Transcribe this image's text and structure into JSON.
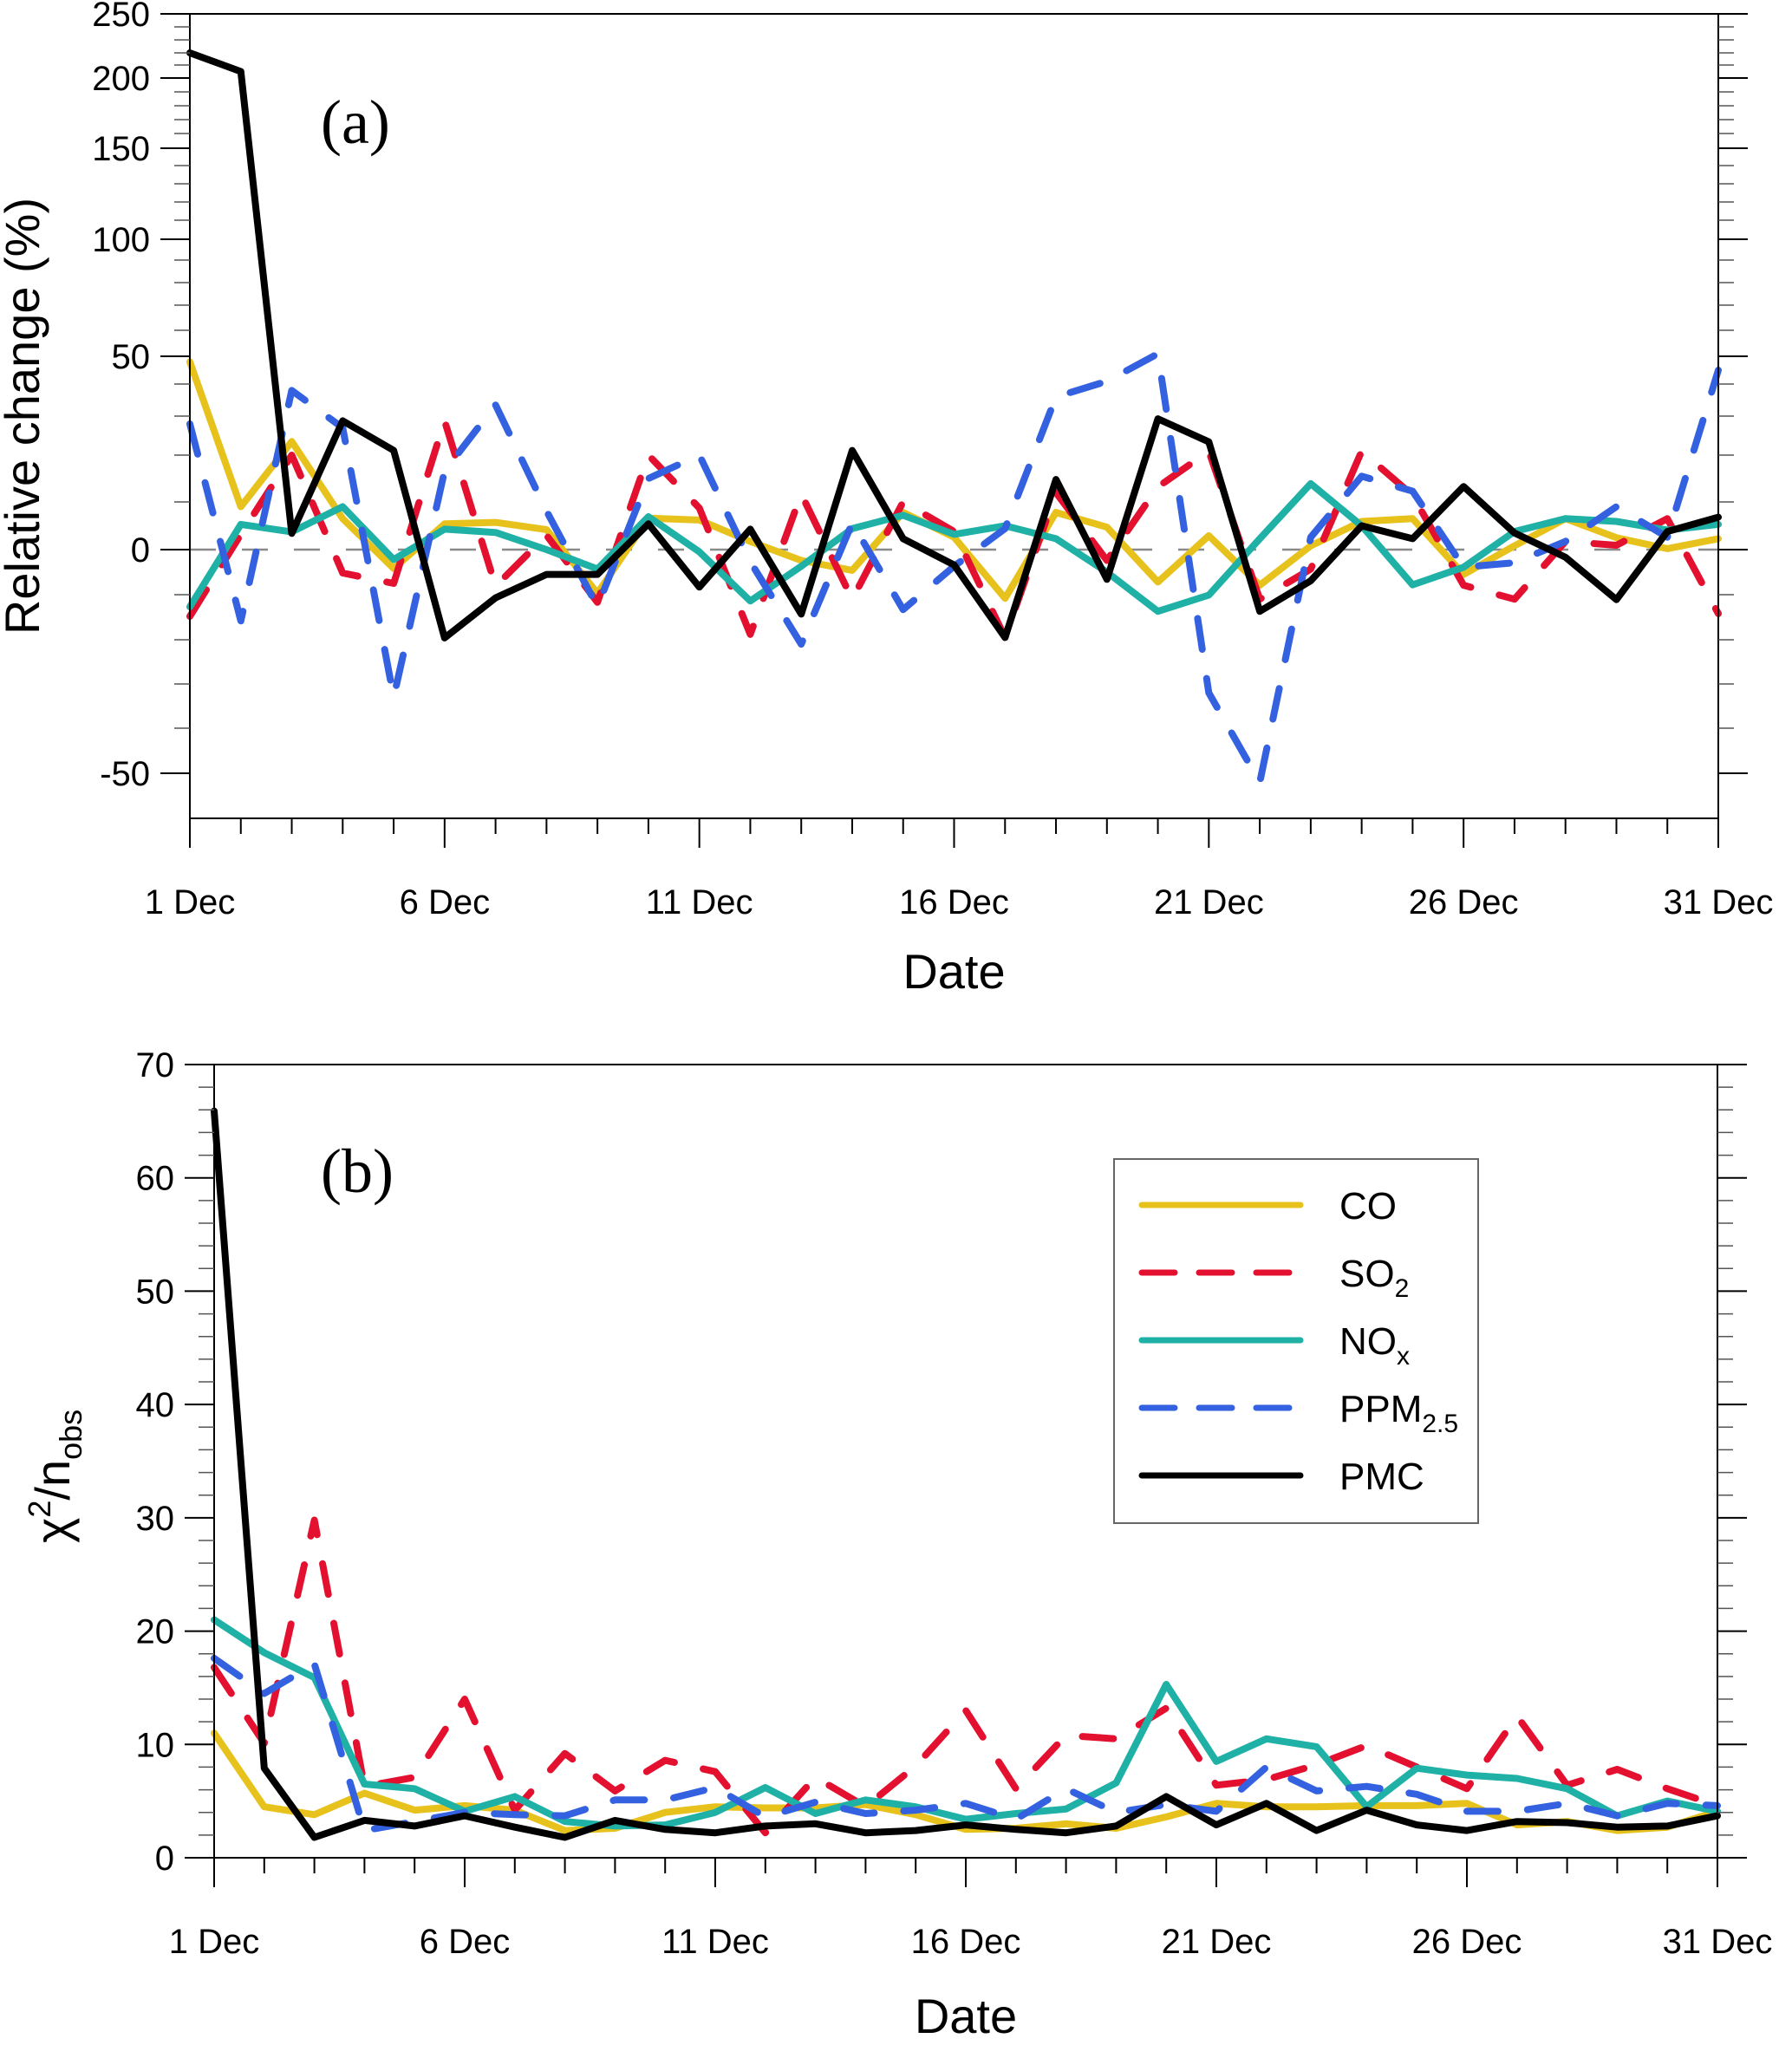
{
  "figure": {
    "legend": {
      "entries": [
        {
          "key": "CO",
          "label": "CO",
          "sub": ""
        },
        {
          "key": "SO2",
          "label": "SO",
          "sub": "2"
        },
        {
          "key": "NOx",
          "label": "NO",
          "sub": "x"
        },
        {
          "key": "PPM25",
          "label": "PPM",
          "sub": "2.5"
        },
        {
          "key": "PMC",
          "label": "PMC",
          "sub": ""
        }
      ],
      "placement": "upper-right of panel (b)"
    },
    "series_style": {
      "CO": {
        "color": "#e8c21c",
        "dash": "solid"
      },
      "SO2": {
        "color": "#e3102f",
        "dash": "dashed"
      },
      "NOx": {
        "color": "#1fb0a6",
        "dash": "solid"
      },
      "PPM25": {
        "color": "#3361e0",
        "dash": "dashed"
      },
      "PMC": {
        "color": "#000000",
        "dash": "solid"
      }
    }
  },
  "chart_data": [
    {
      "type": "line",
      "panel_label": "(a)",
      "title": "",
      "xlabel": "Date",
      "ylabel": "Relative change (%)",
      "x": [
        1,
        2,
        3,
        4,
        5,
        6,
        7,
        8,
        9,
        10,
        11,
        12,
        13,
        14,
        15,
        16,
        17,
        18,
        19,
        20,
        21,
        22,
        23,
        24,
        25,
        26,
        27,
        28,
        29,
        30,
        31
      ],
      "x_ticks": [
        1,
        6,
        11,
        16,
        21,
        26,
        31
      ],
      "x_tick_labels": [
        "1 Dec",
        "6 Dec",
        "11 Dec",
        "16 Dec",
        "21 Dec",
        "26 Dec",
        "31 Dec"
      ],
      "y_ticks": [
        -50,
        0,
        50,
        100,
        150,
        200,
        250
      ],
      "y_tick_labels": [
        "-50",
        "0",
        "50",
        "100",
        "150",
        "200",
        "250"
      ],
      "ylim": [
        -60,
        250
      ],
      "y_scale": "nonlinear (compressed above 0)",
      "reference_line": 0,
      "grid": false,
      "series": [
        {
          "name": "CO",
          "values": [
            48,
            9,
            23.5,
            6.5,
            -4.2,
            5.4,
            5.7,
            4.2,
            -9.7,
            6.6,
            6.2,
            1.7,
            -2.4,
            -4.6,
            7.8,
            2.6,
            -10.8,
            7.8,
            4.7,
            -7.2,
            2.9,
            -7.9,
            0.8,
            5.9,
            6.5,
            -5.5,
            0.8,
            6.5,
            2.5,
            0.2,
            2.3
          ]
        },
        {
          "name": "SO2",
          "values": [
            -14.8,
            3.2,
            20,
            -5.2,
            -7.5,
            28.8,
            -8.1,
            3.0,
            -11.7,
            20,
            8.7,
            -18.8,
            11.7,
            -11,
            10,
            3.8,
            -19.5,
            12,
            -2.4,
            13.2,
            21,
            -11,
            -4.3,
            21,
            11.4,
            -7.9,
            -11,
            1.7,
            0.9,
            6.5,
            -14.2
          ]
        },
        {
          "name": "NOx",
          "values": [
            -12.7,
            5.3,
            3.7,
            9,
            -2.2,
            4.3,
            3.6,
            0,
            -4.3,
            6.9,
            -0.5,
            -11.4,
            -3.7,
            4.4,
            7.2,
            3.2,
            5.0,
            2.3,
            -5,
            -13.7,
            -10.1,
            2.3,
            13.9,
            5,
            -7.8,
            -3.9,
            3.8,
            6.5,
            5.9,
            4.1,
            5.3
          ]
        },
        {
          "name": "PPM2.5",
          "values": [
            28,
            -15.8,
            38,
            27,
            -33,
            16.6,
            33.5,
            8.1,
            -12.6,
            15,
            20,
            -2.7,
            -21,
            5.6,
            -13.3,
            -3.7,
            4.4,
            36,
            41,
            51,
            -32,
            -52,
            2.6,
            15.5,
            12.3,
            -3.9,
            -2.9,
            1.7,
            9,
            2.6,
            45
          ]
        },
        {
          "name": "PMC",
          "values": [
            220,
            205,
            3.4,
            28.8,
            21.2,
            -19.6,
            -10.7,
            -5.5,
            -5.5,
            5.4,
            -8.3,
            4.3,
            -14.3,
            21.2,
            2.3,
            -3.4,
            -19.5,
            14.8,
            -6.6,
            29.3,
            23.4,
            -13.7,
            -6.9,
            5,
            2.3,
            13.3,
            3.5,
            -1.7,
            -11.1,
            3.8,
            6.8
          ]
        }
      ]
    },
    {
      "type": "line",
      "panel_label": "(b)",
      "title": "",
      "xlabel": "Date",
      "ylabel": "χ2/nobs",
      "ylabel_parts": {
        "main": "χ",
        "sup": "2",
        "mid": "/n",
        "sub": "obs"
      },
      "x": [
        1,
        2,
        3,
        4,
        5,
        6,
        7,
        8,
        9,
        10,
        11,
        12,
        13,
        14,
        15,
        16,
        17,
        18,
        19,
        20,
        21,
        22,
        23,
        24,
        25,
        26,
        27,
        28,
        29,
        30,
        31
      ],
      "x_ticks": [
        1,
        6,
        11,
        16,
        21,
        26,
        31
      ],
      "x_tick_labels": [
        "1 Dec",
        "6 Dec",
        "11 Dec",
        "16 Dec",
        "21 Dec",
        "26 Dec",
        "31 Dec"
      ],
      "y_ticks": [
        0,
        10,
        20,
        30,
        40,
        50,
        60,
        70
      ],
      "y_tick_labels": [
        "0",
        "10",
        "20",
        "30",
        "40",
        "50",
        "60",
        "70"
      ],
      "ylim": [
        0,
        70
      ],
      "grid": false,
      "legend_placement": "top-right",
      "series": [
        {
          "name": "CO",
          "values": [
            11.0,
            4.5,
            3.8,
            5.7,
            4.2,
            4.6,
            4.2,
            2.4,
            2.6,
            4.0,
            4.5,
            4.4,
            4.4,
            4.7,
            3.8,
            2.5,
            2.6,
            3.0,
            2.6,
            3.6,
            4.8,
            4.5,
            4.5,
            4.6,
            4.6,
            4.8,
            2.9,
            3.2,
            2.4,
            2.7,
            4.1
          ]
        },
        {
          "name": "SO2",
          "values": [
            16.8,
            10.1,
            29.8,
            6.3,
            7.1,
            14.0,
            4.2,
            9.2,
            5.9,
            8.6,
            7.6,
            2.2,
            7.1,
            4.5,
            8.1,
            13.0,
            6.1,
            10.8,
            10.5,
            13.2,
            6.4,
            6.9,
            8.2,
            9.9,
            8.0,
            6.1,
            12.5,
            6.4,
            7.8,
            6.1,
            4.6
          ]
        },
        {
          "name": "NOx",
          "values": [
            21.0,
            18.1,
            15.9,
            6.5,
            6.1,
            4.1,
            5.4,
            3.2,
            2.8,
            2.9,
            4.0,
            6.2,
            3.9,
            5.1,
            4.5,
            3.4,
            3.9,
            4.3,
            6.6,
            15.3,
            8.5,
            10.5,
            9.8,
            4.5,
            7.9,
            7.3,
            7.0,
            6.1,
            3.7,
            5.0,
            4.1
          ]
        },
        {
          "name": "PPM2.5",
          "values": [
            17.6,
            14.5,
            17.1,
            2.4,
            3.2,
            4.0,
            3.8,
            3.7,
            5.1,
            5.1,
            6.2,
            3.6,
            4.9,
            3.9,
            4.2,
            4.8,
            3.4,
            6.1,
            4.0,
            4.7,
            4.1,
            8.0,
            5.9,
            6.3,
            5.6,
            4.1,
            4.1,
            4.8,
            3.7,
            4.8,
            4.6
          ]
        },
        {
          "name": "PMC",
          "values": [
            65.9,
            7.9,
            1.8,
            3.3,
            2.8,
            3.7,
            2.7,
            1.8,
            3.3,
            2.5,
            2.2,
            2.8,
            3.0,
            2.2,
            2.4,
            2.9,
            2.5,
            2.2,
            2.8,
            5.4,
            2.9,
            4.8,
            2.4,
            4.2,
            2.9,
            2.4,
            3.2,
            3.1,
            2.7,
            2.8,
            3.7
          ]
        }
      ]
    }
  ]
}
